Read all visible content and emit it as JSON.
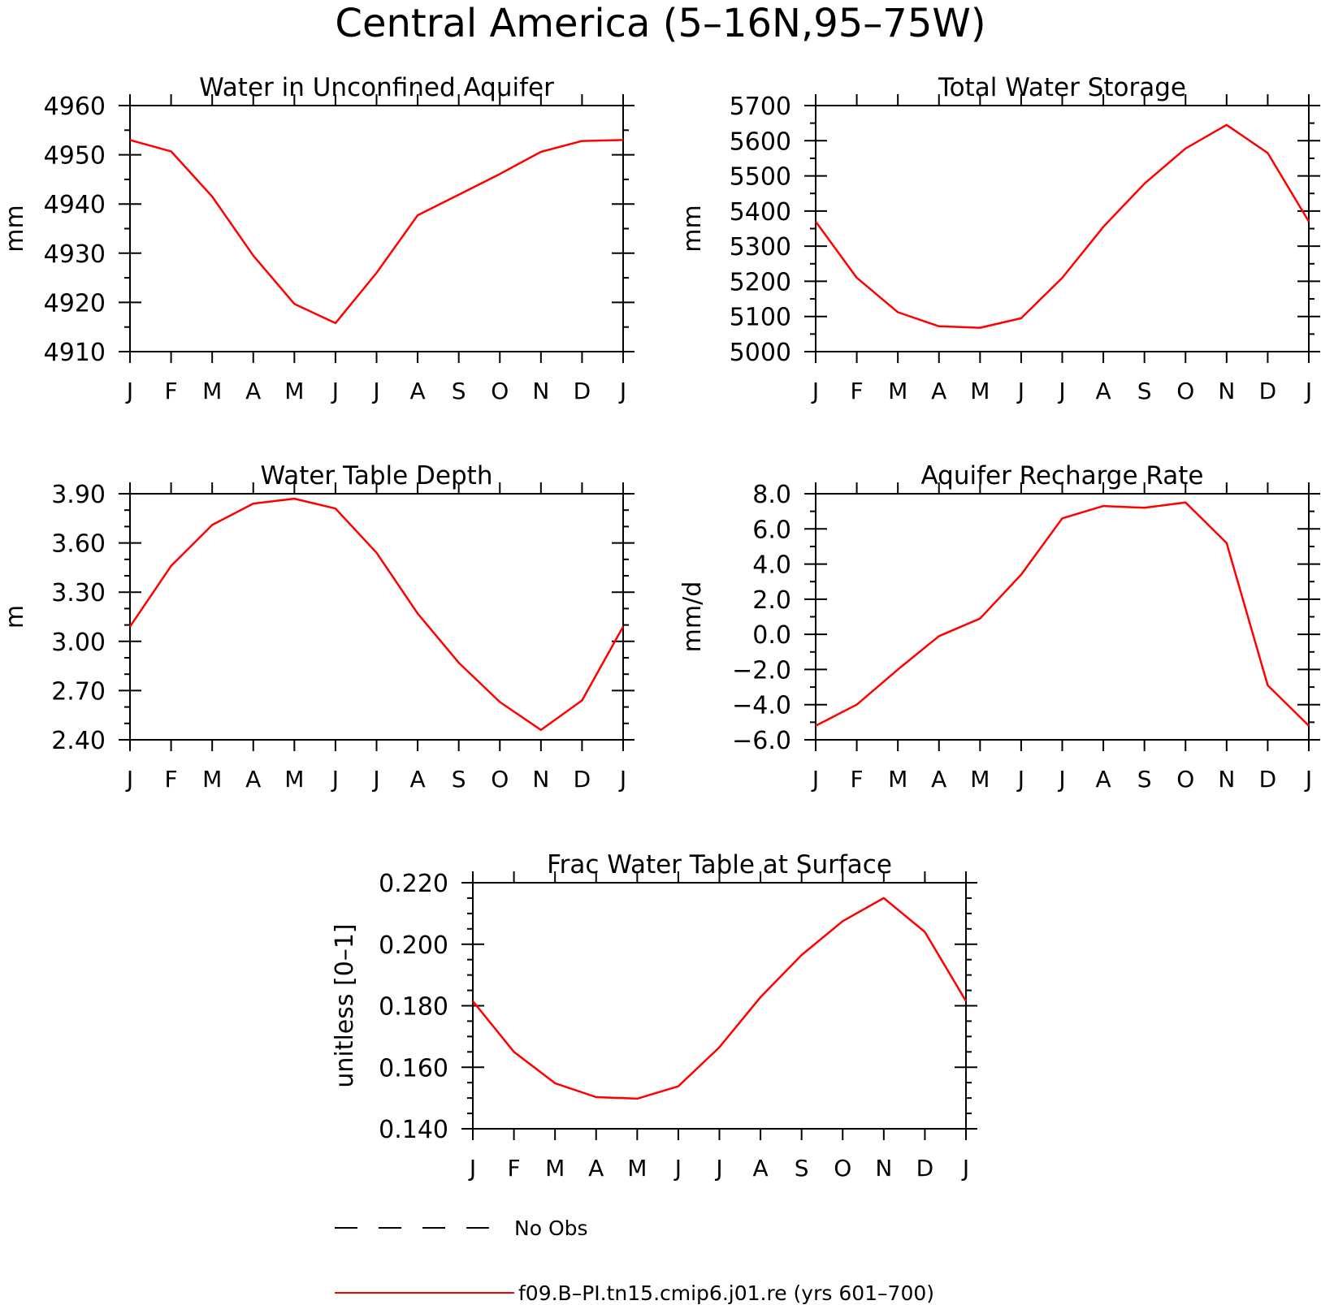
{
  "page": {
    "title": "Central America (5–16N,95–75W)"
  },
  "legend": {
    "entries": [
      {
        "label": "No Obs",
        "style": "dashed",
        "color": "#000000"
      },
      {
        "label": "f09.B–PI.tn15.cmip6.j01.re (yrs 601–700)",
        "style": "solid",
        "color": "#ff0000"
      }
    ]
  },
  "colors": {
    "series": "#ff0000",
    "axis": "#000000"
  },
  "chart_data": [
    {
      "type": "line",
      "title": "Water in Unconfined Aquifer",
      "ylabel": "mm",
      "xlabel": "",
      "categories": [
        "J",
        "F",
        "M",
        "A",
        "M",
        "J",
        "J",
        "A",
        "S",
        "O",
        "N",
        "D",
        "J"
      ],
      "ylim": [
        4910,
        4960
      ],
      "yticks": [
        "4910",
        "4920",
        "4930",
        "4940",
        "4950",
        "4960"
      ],
      "minor_per_major": 2,
      "series": [
        {
          "name": "f09.B–PI.tn15.cmip6.j01.re (yrs 601–700)",
          "values": [
            4953.0,
            4950.7,
            4941.5,
            4929.5,
            4919.7,
            4915.8,
            4926.0,
            4937.7,
            4941.9,
            4946.1,
            4950.6,
            4952.8,
            4953.0
          ]
        }
      ]
    },
    {
      "type": "line",
      "title": "Total Water Storage",
      "ylabel": "mm",
      "xlabel": "",
      "categories": [
        "J",
        "F",
        "M",
        "A",
        "M",
        "J",
        "J",
        "A",
        "S",
        "O",
        "N",
        "D",
        "J"
      ],
      "ylim": [
        5000,
        5700
      ],
      "yticks": [
        "5000",
        "5100",
        "5200",
        "5300",
        "5400",
        "5500",
        "5600",
        "5700"
      ],
      "minor_per_major": 2,
      "series": [
        {
          "name": "f09.B–PI.tn15.cmip6.j01.re (yrs 601–700)",
          "values": [
            5370,
            5210,
            5112,
            5072,
            5068,
            5095,
            5210,
            5355,
            5478,
            5578,
            5645,
            5565,
            5370
          ]
        }
      ]
    },
    {
      "type": "line",
      "title": "Water Table Depth",
      "ylabel": "m",
      "xlabel": "",
      "categories": [
        "J",
        "F",
        "M",
        "A",
        "M",
        "J",
        "J",
        "A",
        "S",
        "O",
        "N",
        "D",
        "J"
      ],
      "ylim": [
        2.4,
        3.9
      ],
      "yticks": [
        "2.40",
        "2.70",
        "3.00",
        "3.30",
        "3.60",
        "3.90"
      ],
      "minor_per_major": 3,
      "series": [
        {
          "name": "f09.B–PI.tn15.cmip6.j01.re (yrs 601–700)",
          "values": [
            3.09,
            3.46,
            3.71,
            3.84,
            3.87,
            3.81,
            3.54,
            3.17,
            2.87,
            2.63,
            2.46,
            2.64,
            3.09
          ]
        }
      ]
    },
    {
      "type": "line",
      "title": "Aquifer Recharge Rate",
      "ylabel": "mm/d",
      "xlabel": "",
      "categories": [
        "J",
        "F",
        "M",
        "A",
        "M",
        "J",
        "J",
        "A",
        "S",
        "O",
        "N",
        "D",
        "J"
      ],
      "ylim": [
        -6.0,
        8.0
      ],
      "yticks": [
        "−6.0",
        "−4.0",
        "−2.0",
        "0.0",
        "2.0",
        "4.0",
        "6.0",
        "8.0"
      ],
      "minor_per_major": 2,
      "series": [
        {
          "name": "f09.B–PI.tn15.cmip6.j01.re (yrs 601–700)",
          "values": [
            -5.2,
            -4.0,
            -2.0,
            -0.1,
            0.9,
            3.4,
            6.6,
            7.3,
            7.2,
            7.5,
            5.2,
            -2.9,
            -5.2
          ]
        }
      ]
    },
    {
      "type": "line",
      "title": "Frac Water Table at Surface",
      "ylabel": "unitless [0–1]",
      "xlabel": "",
      "categories": [
        "J",
        "F",
        "M",
        "A",
        "M",
        "J",
        "J",
        "A",
        "S",
        "O",
        "N",
        "D",
        "J"
      ],
      "ylim": [
        0.14,
        0.22
      ],
      "yticks": [
        "0.140",
        "0.160",
        "0.180",
        "0.200",
        "0.220"
      ],
      "minor_per_major": 4,
      "series": [
        {
          "name": "f09.B–PI.tn15.cmip6.j01.re (yrs 601–700)",
          "values": [
            0.1815,
            0.165,
            0.1548,
            0.1503,
            0.1498,
            0.1538,
            0.1665,
            0.1828,
            0.1965,
            0.2075,
            0.215,
            0.204,
            0.1815
          ]
        }
      ]
    }
  ]
}
